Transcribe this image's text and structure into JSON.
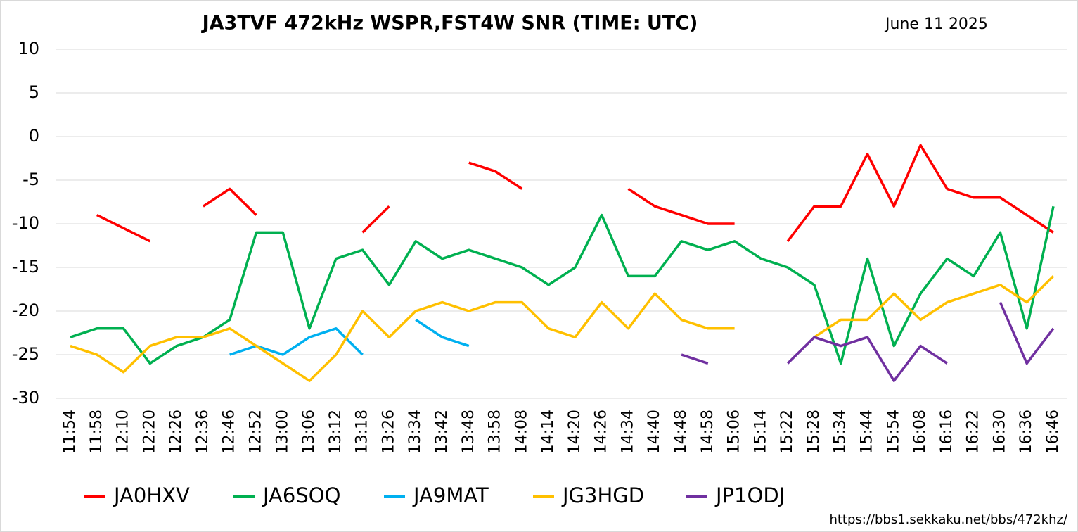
{
  "chart_data": {
    "type": "line",
    "title": "JA3TVF 472kHz WSPR,FST4W SNR (TIME: UTC)",
    "subtitle": "June 11 2025",
    "footnote": "https://bbs1.sekkaku.net/bbs/472khz/",
    "categories": [
      "11:54",
      "11:58",
      "12:10",
      "12:20",
      "12:26",
      "12:36",
      "12:46",
      "12:52",
      "13:00",
      "13:06",
      "13:12",
      "13:18",
      "13:26",
      "13:34",
      "13:42",
      "13:48",
      "13:58",
      "14:08",
      "14:14",
      "14:20",
      "14:26",
      "14:34",
      "14:40",
      "14:48",
      "14:58",
      "15:06",
      "15:14",
      "15:22",
      "15:28",
      "15:34",
      "15:44",
      "15:54",
      "16:08",
      "16:16",
      "16:22",
      "16:30",
      "16:36",
      "16:46"
    ],
    "series": [
      {
        "name": "JA0HXV",
        "color": "#ff0000",
        "values": [
          null,
          -9,
          -10.5,
          -12,
          null,
          -8,
          -6,
          -9,
          null,
          null,
          null,
          -11,
          -8,
          null,
          null,
          -3,
          -4,
          -6,
          null,
          null,
          null,
          -6,
          -8,
          -9,
          -10,
          -10,
          null,
          -12,
          -8,
          -8,
          -2,
          -8,
          -1,
          -6,
          -7,
          -7,
          -9,
          -11
        ]
      },
      {
        "name": "JA6SOQ",
        "color": "#00b050",
        "values": [
          -23,
          -22,
          -22,
          -26,
          -24,
          -23,
          -21,
          -11,
          -11,
          -22,
          -14,
          -13,
          -17,
          -12,
          -14,
          -13,
          -14,
          -15,
          -17,
          -15,
          -9,
          -16,
          -16,
          -12,
          -13,
          -12,
          -14,
          -15,
          -17,
          -26,
          -14,
          -24,
          -18,
          -14,
          -16,
          -11,
          -22,
          -8
        ]
      },
      {
        "name": "JA9MAT",
        "color": "#00b0f0",
        "values": [
          null,
          null,
          null,
          null,
          null,
          null,
          -25,
          -24,
          -25,
          -23,
          -22,
          -25,
          null,
          -21,
          -23,
          -24,
          null,
          null,
          null,
          null,
          null,
          null,
          null,
          null,
          null,
          null,
          null,
          null,
          null,
          null,
          null,
          null,
          null,
          null,
          null,
          null,
          null,
          null
        ]
      },
      {
        "name": "JG3HGD",
        "color": "#ffc000",
        "values": [
          -24,
          -25,
          -27,
          -24,
          -23,
          -23,
          -22,
          -24,
          -26,
          -28,
          -25,
          -20,
          -23,
          -20,
          -19,
          -20,
          -19,
          -19,
          -22,
          -23,
          -19,
          -22,
          -18,
          -21,
          -22,
          -22,
          null,
          null,
          -23,
          -21,
          -21,
          -18,
          -21,
          -19,
          -18,
          -17,
          -19,
          -16
        ]
      },
      {
        "name": "JP1ODJ",
        "color": "#7030a0",
        "values": [
          null,
          null,
          null,
          null,
          null,
          null,
          null,
          null,
          null,
          null,
          null,
          null,
          null,
          null,
          null,
          null,
          null,
          null,
          null,
          null,
          null,
          null,
          null,
          -25,
          -26,
          null,
          null,
          -26,
          -23,
          -24,
          -23,
          -28,
          -24,
          -26,
          null,
          -19,
          -26,
          -22
        ]
      }
    ],
    "ylim": [
      -30,
      10
    ],
    "yticks": [
      -30,
      -25,
      -20,
      -15,
      -10,
      -5,
      0,
      5,
      10
    ],
    "grid": true,
    "legend": "bottom"
  }
}
